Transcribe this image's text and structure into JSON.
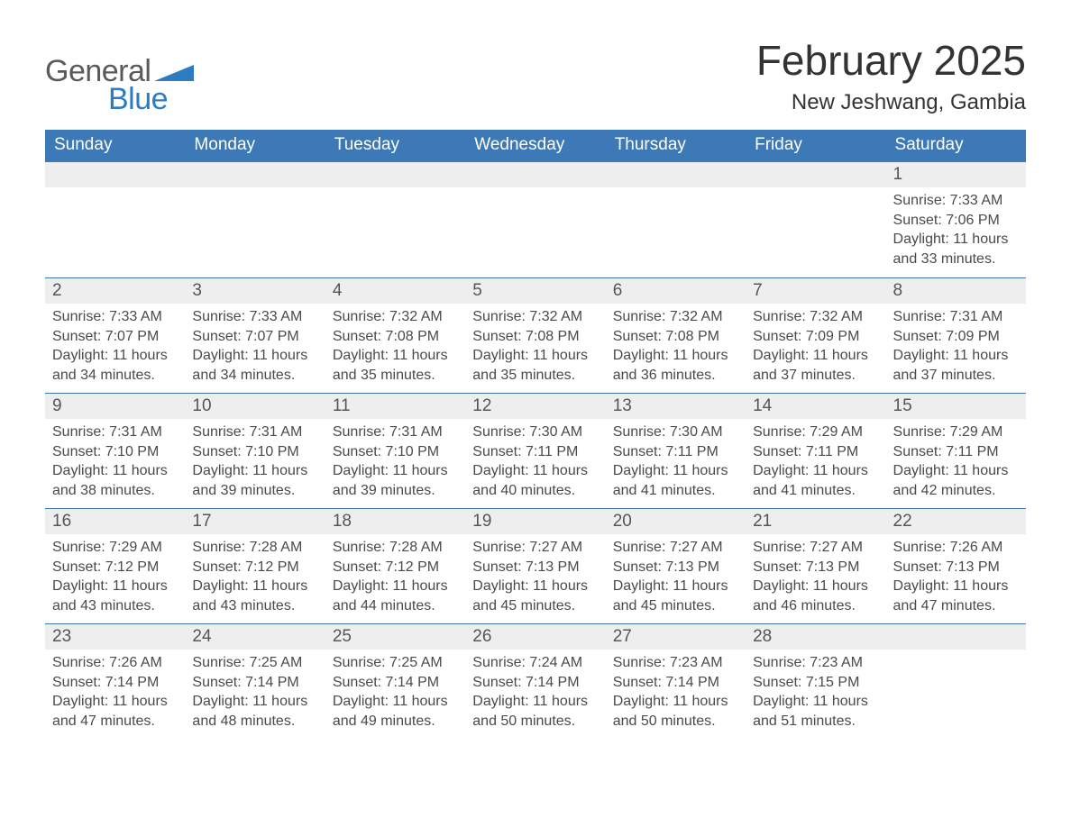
{
  "colors": {
    "header_bg": "#3d79b6",
    "header_text": "#ffffff",
    "page_bg": "#ffffff",
    "text_dark": "#333333",
    "text_mid": "#4a4a4a",
    "logo_general": "#5a5a5a",
    "logo_blue": "#2d7cc1",
    "daynum_bg": "#eeeeee",
    "daynum_text": "#555555",
    "week_border": "#3d79b6",
    "swoosh": "#2d7cc1"
  },
  "logo": {
    "general": "General",
    "blue": "Blue"
  },
  "title": {
    "month": "February 2025",
    "location": "New Jeshwang, Gambia"
  },
  "day_headers": [
    "Sunday",
    "Monday",
    "Tuesday",
    "Wednesday",
    "Thursday",
    "Friday",
    "Saturday"
  ],
  "weeks": [
    [
      null,
      null,
      null,
      null,
      null,
      null,
      {
        "n": "1",
        "sr": "7:33 AM",
        "ss": "7:06 PM",
        "dl": "11 hours and 33 minutes."
      }
    ],
    [
      {
        "n": "2",
        "sr": "7:33 AM",
        "ss": "7:07 PM",
        "dl": "11 hours and 34 minutes."
      },
      {
        "n": "3",
        "sr": "7:33 AM",
        "ss": "7:07 PM",
        "dl": "11 hours and 34 minutes."
      },
      {
        "n": "4",
        "sr": "7:32 AM",
        "ss": "7:08 PM",
        "dl": "11 hours and 35 minutes."
      },
      {
        "n": "5",
        "sr": "7:32 AM",
        "ss": "7:08 PM",
        "dl": "11 hours and 35 minutes."
      },
      {
        "n": "6",
        "sr": "7:32 AM",
        "ss": "7:08 PM",
        "dl": "11 hours and 36 minutes."
      },
      {
        "n": "7",
        "sr": "7:32 AM",
        "ss": "7:09 PM",
        "dl": "11 hours and 37 minutes."
      },
      {
        "n": "8",
        "sr": "7:31 AM",
        "ss": "7:09 PM",
        "dl": "11 hours and 37 minutes."
      }
    ],
    [
      {
        "n": "9",
        "sr": "7:31 AM",
        "ss": "7:10 PM",
        "dl": "11 hours and 38 minutes."
      },
      {
        "n": "10",
        "sr": "7:31 AM",
        "ss": "7:10 PM",
        "dl": "11 hours and 39 minutes."
      },
      {
        "n": "11",
        "sr": "7:31 AM",
        "ss": "7:10 PM",
        "dl": "11 hours and 39 minutes."
      },
      {
        "n": "12",
        "sr": "7:30 AM",
        "ss": "7:11 PM",
        "dl": "11 hours and 40 minutes."
      },
      {
        "n": "13",
        "sr": "7:30 AM",
        "ss": "7:11 PM",
        "dl": "11 hours and 41 minutes."
      },
      {
        "n": "14",
        "sr": "7:29 AM",
        "ss": "7:11 PM",
        "dl": "11 hours and 41 minutes."
      },
      {
        "n": "15",
        "sr": "7:29 AM",
        "ss": "7:11 PM",
        "dl": "11 hours and 42 minutes."
      }
    ],
    [
      {
        "n": "16",
        "sr": "7:29 AM",
        "ss": "7:12 PM",
        "dl": "11 hours and 43 minutes."
      },
      {
        "n": "17",
        "sr": "7:28 AM",
        "ss": "7:12 PM",
        "dl": "11 hours and 43 minutes."
      },
      {
        "n": "18",
        "sr": "7:28 AM",
        "ss": "7:12 PM",
        "dl": "11 hours and 44 minutes."
      },
      {
        "n": "19",
        "sr": "7:27 AM",
        "ss": "7:13 PM",
        "dl": "11 hours and 45 minutes."
      },
      {
        "n": "20",
        "sr": "7:27 AM",
        "ss": "7:13 PM",
        "dl": "11 hours and 45 minutes."
      },
      {
        "n": "21",
        "sr": "7:27 AM",
        "ss": "7:13 PM",
        "dl": "11 hours and 46 minutes."
      },
      {
        "n": "22",
        "sr": "7:26 AM",
        "ss": "7:13 PM",
        "dl": "11 hours and 47 minutes."
      }
    ],
    [
      {
        "n": "23",
        "sr": "7:26 AM",
        "ss": "7:14 PM",
        "dl": "11 hours and 47 minutes."
      },
      {
        "n": "24",
        "sr": "7:25 AM",
        "ss": "7:14 PM",
        "dl": "11 hours and 48 minutes."
      },
      {
        "n": "25",
        "sr": "7:25 AM",
        "ss": "7:14 PM",
        "dl": "11 hours and 49 minutes."
      },
      {
        "n": "26",
        "sr": "7:24 AM",
        "ss": "7:14 PM",
        "dl": "11 hours and 50 minutes."
      },
      {
        "n": "27",
        "sr": "7:23 AM",
        "ss": "7:14 PM",
        "dl": "11 hours and 50 minutes."
      },
      {
        "n": "28",
        "sr": "7:23 AM",
        "ss": "7:15 PM",
        "dl": "11 hours and 51 minutes."
      },
      null
    ]
  ],
  "labels": {
    "sunrise": "Sunrise: ",
    "sunset": "Sunset: ",
    "daylight": "Daylight: "
  }
}
